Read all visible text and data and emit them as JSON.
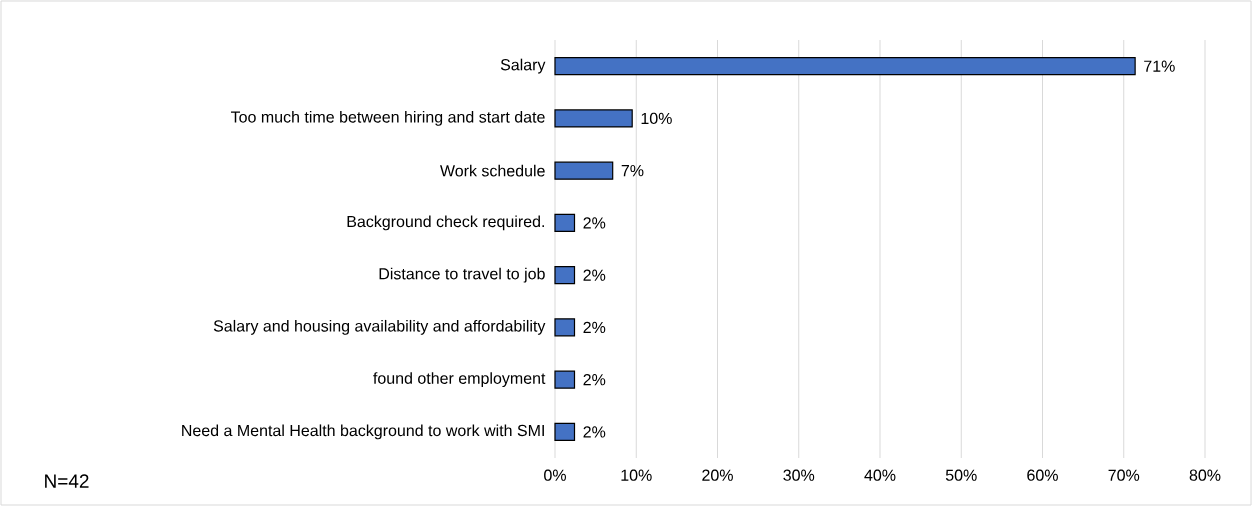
{
  "chart_data": {
    "type": "bar",
    "orientation": "horizontal",
    "categories": [
      "Salary",
      "Too much time between hiring and start date",
      "Work schedule",
      "Background check required.",
      "Distance to travel to job",
      "Salary and housing availability and affordability",
      "found other employment",
      "Need a Mental Health background to work with SMI"
    ],
    "values": [
      71.4,
      9.5,
      7.1,
      2.4,
      2.4,
      2.4,
      2.4,
      2.4
    ],
    "value_labels": [
      "71%",
      "10%",
      "7%",
      "2%",
      "2%",
      "2%",
      "2%",
      "2%"
    ],
    "color": "#4472c4",
    "xlim": [
      0,
      80
    ],
    "xticks": [
      {
        "value": 0,
        "label": "0%"
      },
      {
        "value": 10,
        "label": "10%"
      },
      {
        "value": 20,
        "label": "20%"
      },
      {
        "value": 30,
        "label": "30%"
      },
      {
        "value": 40,
        "label": "40%"
      },
      {
        "value": 50,
        "label": "50%"
      },
      {
        "value": 60,
        "label": "60%"
      },
      {
        "value": 70,
        "label": "70%"
      },
      {
        "value": 80,
        "label": "80%"
      }
    ],
    "grid": "x",
    "annotations": [
      "N=42"
    ]
  }
}
